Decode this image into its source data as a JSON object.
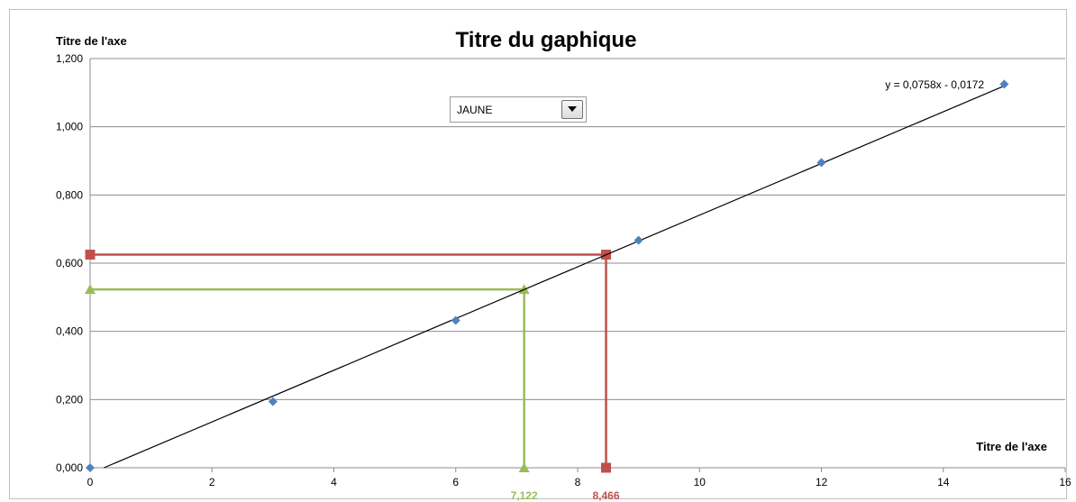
{
  "title": "Titre du gaphique",
  "dropdown": {
    "value": "JAUNE",
    "icon": "chevron-down-icon"
  },
  "chart_data": {
    "type": "scatter",
    "title": "Titre du gaphique",
    "xlabel": "Titre de l'axe",
    "ylabel": "Titre de l'axe",
    "xlim": [
      0,
      16
    ],
    "ylim": [
      0,
      1.2
    ],
    "x_ticks": [
      0,
      2,
      4,
      6,
      8,
      10,
      12,
      14,
      16
    ],
    "x_tick_labels": [
      "0",
      "2",
      "4",
      "6",
      "8",
      "10",
      "12",
      "14",
      "16"
    ],
    "y_ticks": [
      0,
      0.2,
      0.4,
      0.6,
      0.8,
      1.0,
      1.2
    ],
    "y_tick_labels": [
      "0,000",
      "0,200",
      "0,400",
      "0,600",
      "0,800",
      "1,000",
      "1,200"
    ],
    "grid": "horizontal",
    "series": [
      {
        "marker": "diamond",
        "color": "#4f81bd",
        "x": [
          0,
          3,
          6,
          9,
          12,
          15
        ],
        "y": [
          0.0,
          0.194,
          0.432,
          0.667,
          0.895,
          1.125
        ]
      }
    ],
    "trendline": {
      "slope": 0.0758,
      "intercept": -0.0172,
      "x_range": [
        0,
        15
      ],
      "equation": "y = 0,0758x - 0,0172",
      "color": "#000000"
    },
    "reference_lines": [
      {
        "color": "#9bbb59",
        "marker": "triangle",
        "x": 7.122,
        "y": 0.523,
        "label": "7,122"
      },
      {
        "color": "#c0504d",
        "marker": "square",
        "x": 8.466,
        "y": 0.625,
        "label": "8,466"
      }
    ]
  }
}
